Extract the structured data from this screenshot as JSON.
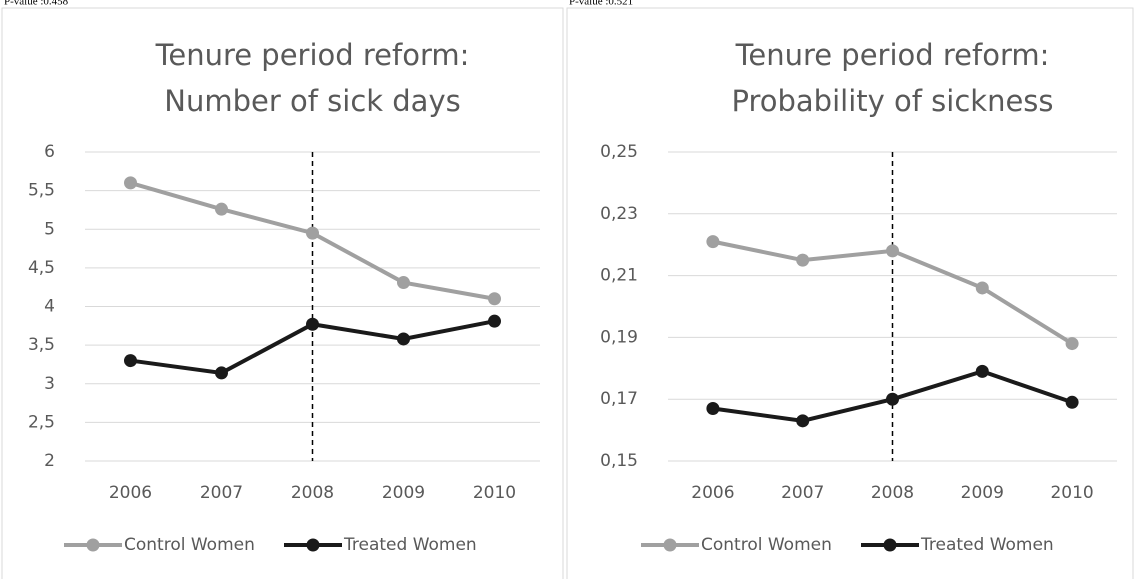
{
  "chart_data": [
    {
      "type": "line",
      "annotation": "P-value :0.458",
      "title": [
        "Tenure period reform:",
        "Number of sick days"
      ],
      "categories": [
        "2006",
        "2007",
        "2008",
        "2009",
        "2010"
      ],
      "series": [
        {
          "name": "Control Women",
          "color": "#a0a0a0",
          "values": [
            5.6,
            5.26,
            4.95,
            4.31,
            4.1
          ]
        },
        {
          "name": "Treated Women",
          "color": "#1a1a1a",
          "values": [
            3.3,
            3.14,
            3.77,
            3.58,
            3.81
          ]
        }
      ],
      "ylim": [
        2,
        6
      ],
      "yticks": [
        2,
        {
          "value": 2.5,
          "label": "2,5"
        },
        3,
        {
          "value": 3.5,
          "label": "3,5"
        },
        4,
        {
          "value": 4.5,
          "label": "4,5"
        },
        5,
        {
          "value": 5.5,
          "label": "5,5"
        },
        6
      ],
      "grid": true,
      "vline_at": "2008",
      "legend": "bottom"
    },
    {
      "type": "line",
      "annotation": "P-value :0.521",
      "title": [
        "Tenure period reform:",
        "Probability of sickness"
      ],
      "categories": [
        "2006",
        "2007",
        "2008",
        "2009",
        "2010"
      ],
      "series": [
        {
          "name": "Control Women",
          "color": "#a0a0a0",
          "values": [
            0.221,
            0.215,
            0.218,
            0.206,
            0.188
          ]
        },
        {
          "name": "Treated Women",
          "color": "#1a1a1a",
          "values": [
            0.167,
            0.163,
            0.17,
            0.179,
            0.169
          ]
        }
      ],
      "ylim": [
        0.15,
        0.25
      ],
      "yticks": [
        {
          "value": 0.15,
          "label": "0,15"
        },
        {
          "value": 0.17,
          "label": "0,17"
        },
        {
          "value": 0.19,
          "label": "0,19"
        },
        {
          "value": 0.21,
          "label": "0,21"
        },
        {
          "value": 0.23,
          "label": "0,23"
        },
        {
          "value": 0.25,
          "label": "0,25"
        }
      ],
      "grid": true,
      "vline_at": "2008",
      "legend": "bottom"
    }
  ]
}
